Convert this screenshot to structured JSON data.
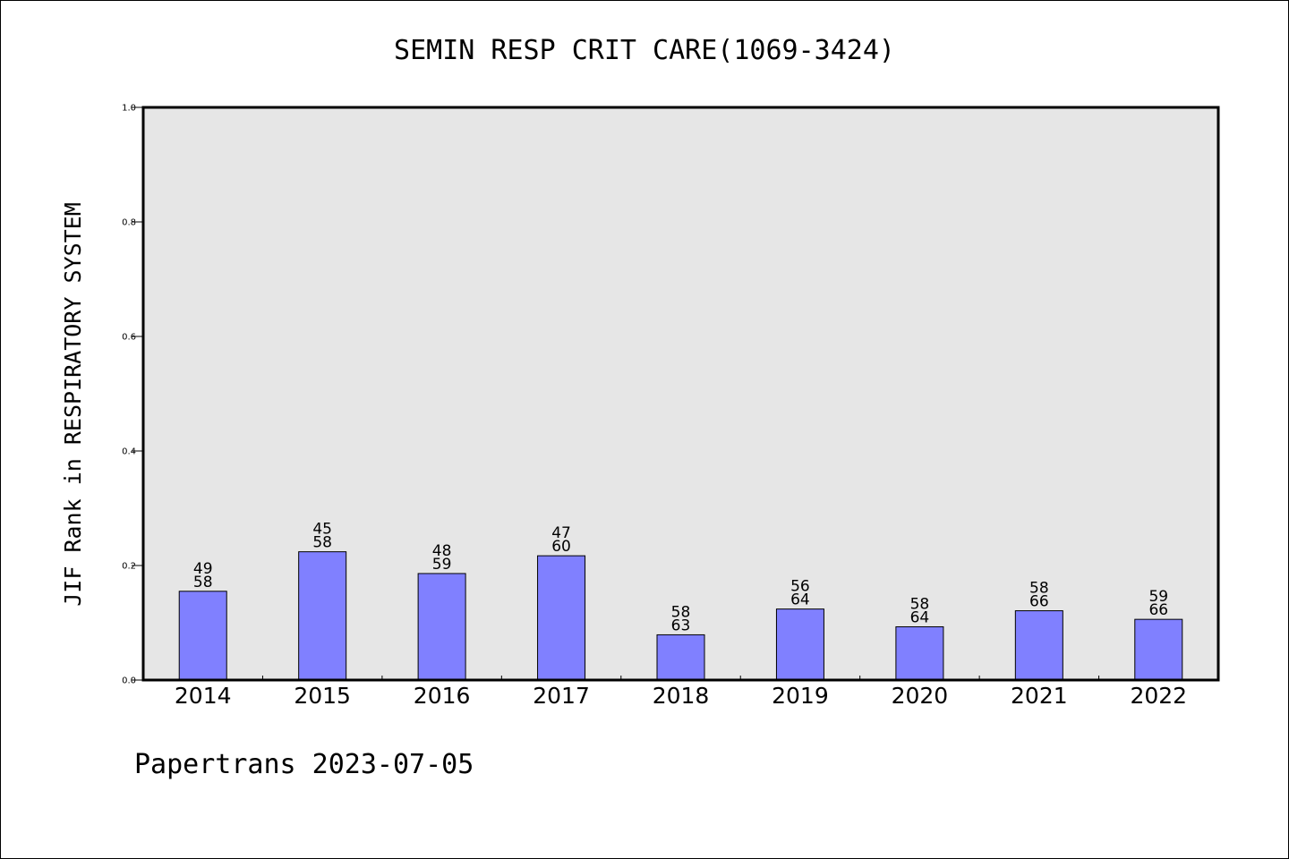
{
  "chart_data": {
    "type": "bar",
    "title": "SEMIN RESP CRIT CARE(1069-3424)",
    "ylabel": "JIF Rank in RESPIRATORY SYSTEM",
    "xlabel": "",
    "ylim": [
      0,
      1.0
    ],
    "yticks": [
      "0.0",
      "0.2",
      "0.4",
      "0.6",
      "0.8",
      "1.0"
    ],
    "categories": [
      "2014",
      "2015",
      "2016",
      "2017",
      "2018",
      "2019",
      "2020",
      "2021",
      "2022"
    ],
    "values": [
      0.155,
      0.224,
      0.186,
      0.217,
      0.079,
      0.124,
      0.093,
      0.121,
      0.106
    ],
    "ranks": [
      "49",
      "45",
      "48",
      "47",
      "58",
      "56",
      "58",
      "58",
      "59"
    ],
    "totals": [
      "58",
      "58",
      "59",
      "60",
      "63",
      "64",
      "64",
      "66",
      "66"
    ],
    "grid": false,
    "bar_color": "#8080ff",
    "plot_background": "#e6e6e6"
  },
  "footer": {
    "text": "Papertrans 2023-07-05"
  }
}
